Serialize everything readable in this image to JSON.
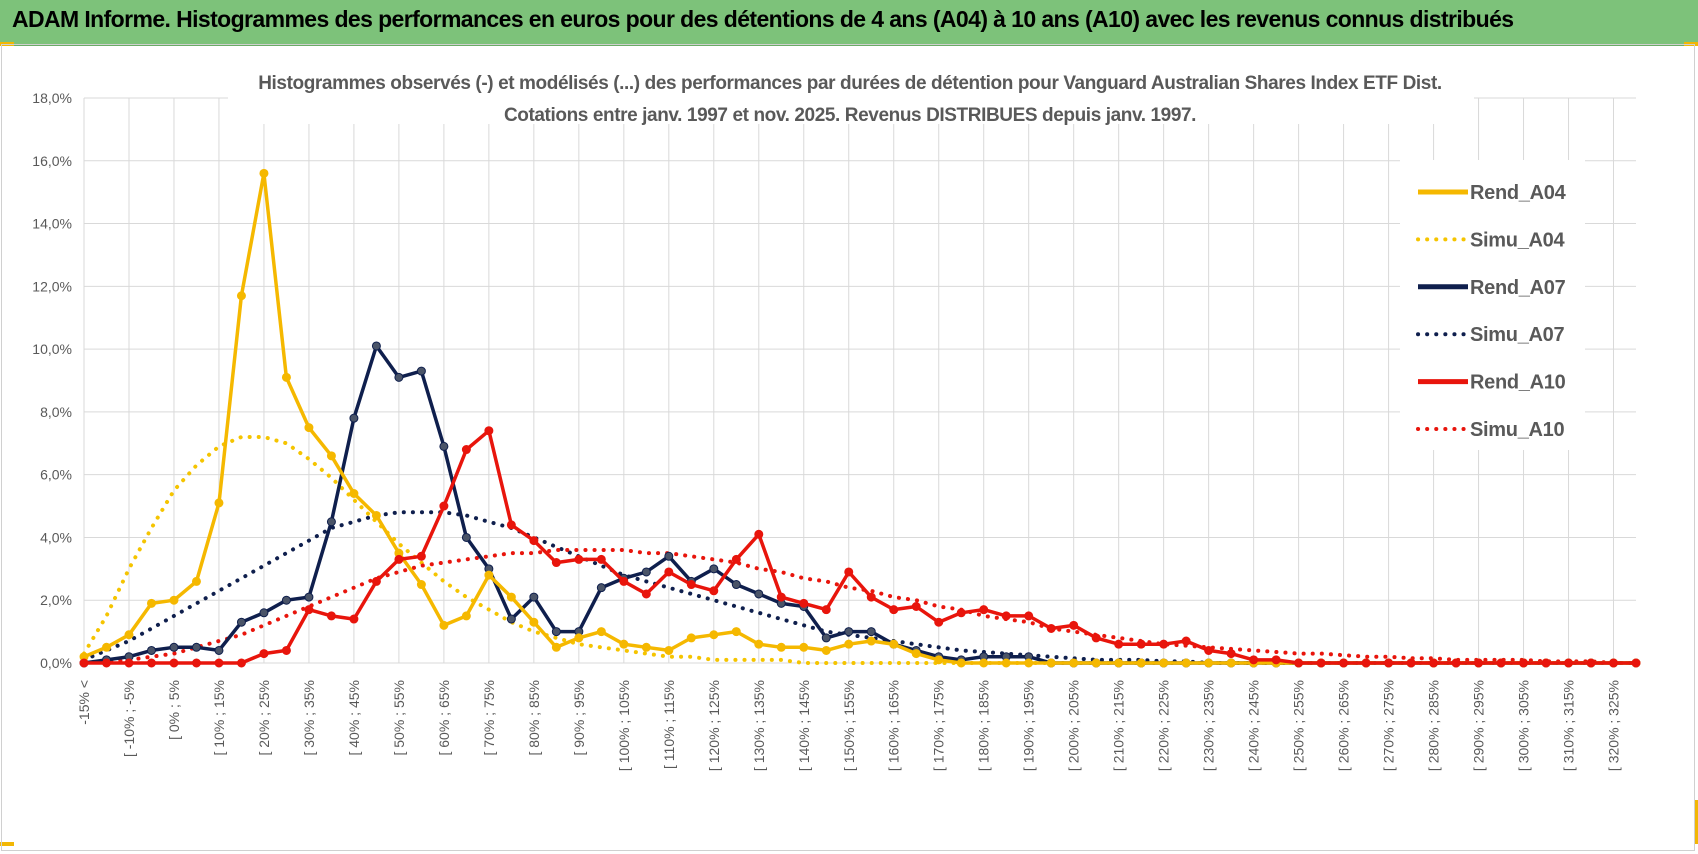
{
  "header": {
    "title": "ADAM Informe. Histogrammes des performances en euros pour des détentions de 4 ans (A04) à 10 ans (A10) avec les revenus connus distribués"
  },
  "chart_data": {
    "type": "line",
    "title": "Histogrammes observés (-) et modélisés (...) des performances par durées de détention pour Vanguard Australian Shares Index ETF Dist.",
    "subtitle": "Cotations entre janv. 1997 et nov. 2025. Revenus DISTRIBUES depuis janv. 1997.",
    "ylim": [
      0,
      18
    ],
    "y_ticks": [
      "0,0%",
      "2,0%",
      "4,0%",
      "6,0%",
      "8,0%",
      "10,0%",
      "12,0%",
      "14,0%",
      "16,0%",
      "18,0%"
    ],
    "x_labels": [
      "-15% <",
      "[ -10% ; -5%",
      "[ 0% ; 5%",
      "[ 10% ; 15%",
      "[ 20% ; 25%",
      "[ 30% ; 35%",
      "[ 40% ; 45%",
      "[ 50% ; 55%",
      "[ 60% ; 65%",
      "[ 70% ; 75%",
      "[ 80% ; 85%",
      "[ 90% ; 95%",
      "[ 100% ; 105%",
      "[ 110% ; 115%",
      "[ 120% ; 125%",
      "[ 130% ; 135%",
      "[ 140% ; 145%",
      "[ 150% ; 155%",
      "[ 160% ; 165%",
      "[ 170% ; 175%",
      "[ 180% ; 185%",
      "[ 190% ; 195%",
      "[ 200% ; 205%",
      "[ 210% ; 215%",
      "[ 220% ; 225%",
      "[ 230% ; 235%",
      "[ 240% ; 245%",
      "[ 250% ; 255%",
      "[ 260% ; 265%",
      "[ 270% ; 275%",
      "[ 280% ; 285%",
      "[ 290% ; 295%",
      "[ 300% ; 305%",
      "[ 310% ; 315%",
      "[ 320% ; 325%"
    ],
    "series": [
      {
        "name": "Rend_A04",
        "style": "solid",
        "markers": true,
        "color": "#f5b800",
        "values": [
          0.2,
          0.5,
          0.9,
          1.9,
          2.0,
          2.6,
          5.1,
          11.7,
          15.6,
          9.1,
          7.5,
          6.6,
          5.4,
          4.7,
          3.5,
          2.5,
          1.2,
          1.5,
          2.8,
          2.1,
          1.3,
          0.5,
          0.8,
          1.0,
          0.6,
          0.5,
          0.4,
          0.8,
          0.9,
          1.0,
          0.6,
          0.5,
          0.5,
          0.4,
          0.6,
          0.7,
          0.6,
          0.3,
          0.1,
          0.0,
          0.0,
          0.0,
          0.0,
          0.0,
          0.0,
          0.0,
          0.0,
          0.0,
          0.0,
          0.0,
          0.0,
          0.0,
          0.0,
          0.0,
          0.0,
          0.0,
          0.0,
          0.0,
          0.0,
          0.0,
          0.0,
          0.0,
          0.0,
          0.0,
          0.0,
          0.0,
          0.0,
          0.0,
          0.0,
          0.0
        ]
      },
      {
        "name": "Simu_A04",
        "style": "dotted",
        "markers": false,
        "color": "#f5c400",
        "values": [
          0.3,
          1.5,
          3.0,
          4.3,
          5.5,
          6.3,
          6.9,
          7.2,
          7.2,
          7.0,
          6.5,
          5.9,
          5.2,
          4.5,
          3.8,
          3.2,
          2.6,
          2.1,
          1.7,
          1.3,
          1.0,
          0.8,
          0.6,
          0.5,
          0.4,
          0.3,
          0.2,
          0.2,
          0.1,
          0.1,
          0.1,
          0.1,
          0.0,
          0.0,
          0.0,
          0.0,
          0.0,
          0.0,
          0.0,
          0.0,
          0.0,
          0.0,
          0.0,
          0.0,
          0.0,
          0.0,
          0.0,
          0.0,
          0.0,
          0.0,
          0.0,
          0.0,
          0.0,
          0.0,
          0.0,
          0.0,
          0.0,
          0.0,
          0.0,
          0.0,
          0.0,
          0.0,
          0.0,
          0.0,
          0.0,
          0.0,
          0.0,
          0.0,
          0.0,
          0.0
        ]
      },
      {
        "name": "Rend_A07",
        "style": "solid",
        "markers": true,
        "color": "#0f1f4d",
        "values": [
          0.0,
          0.1,
          0.2,
          0.4,
          0.5,
          0.5,
          0.4,
          1.3,
          1.6,
          2.0,
          2.1,
          4.5,
          7.8,
          10.1,
          9.1,
          9.3,
          6.9,
          4.0,
          3.0,
          1.4,
          2.1,
          1.0,
          1.0,
          2.4,
          2.7,
          2.9,
          3.4,
          2.6,
          3.0,
          2.5,
          2.2,
          1.9,
          1.8,
          0.8,
          1.0,
          1.0,
          0.6,
          0.4,
          0.2,
          0.1,
          0.2,
          0.2,
          0.2,
          0.0,
          0.0,
          0.0,
          0.0,
          0.0,
          0.0,
          0.0,
          0.0,
          0.0,
          0.0,
          0.0,
          0.0,
          0.0,
          0.0,
          0.0,
          0.0,
          0.0,
          0.0,
          0.0,
          0.0,
          0.0,
          0.0,
          0.0,
          0.0,
          0.0,
          0.0,
          0.0
        ]
      },
      {
        "name": "Simu_A07",
        "style": "dotted",
        "markers": false,
        "color": "#0f1f4d",
        "values": [
          0.1,
          0.4,
          0.7,
          1.1,
          1.5,
          1.9,
          2.3,
          2.7,
          3.1,
          3.5,
          3.9,
          4.3,
          4.5,
          4.7,
          4.8,
          4.8,
          4.8,
          4.7,
          4.5,
          4.3,
          4.0,
          3.7,
          3.4,
          3.1,
          2.8,
          2.6,
          2.4,
          2.2,
          2.0,
          1.8,
          1.6,
          1.4,
          1.2,
          1.0,
          0.9,
          0.8,
          0.7,
          0.6,
          0.5,
          0.4,
          0.35,
          0.3,
          0.25,
          0.2,
          0.15,
          0.1,
          0.1,
          0.1,
          0.05,
          0.05,
          0.0,
          0.0,
          0.0,
          0.0,
          0.0,
          0.0,
          0.0,
          0.0,
          0.0,
          0.0,
          0.0,
          0.0,
          0.0,
          0.0,
          0.0,
          0.0,
          0.0,
          0.0,
          0.0,
          0.0
        ]
      },
      {
        "name": "Rend_A10",
        "style": "solid",
        "markers": true,
        "color": "#e8150c",
        "values": [
          0.0,
          0.0,
          0.0,
          0.0,
          0.0,
          0.0,
          0.0,
          0.0,
          0.3,
          0.4,
          1.7,
          1.5,
          1.4,
          2.6,
          3.3,
          3.4,
          5.0,
          6.8,
          7.4,
          4.4,
          3.9,
          3.2,
          3.3,
          3.3,
          2.6,
          2.2,
          2.9,
          2.5,
          2.3,
          3.3,
          4.1,
          2.1,
          1.9,
          1.7,
          2.9,
          2.1,
          1.7,
          1.8,
          1.3,
          1.6,
          1.7,
          1.5,
          1.5,
          1.1,
          1.2,
          0.8,
          0.6,
          0.6,
          0.6,
          0.7,
          0.4,
          0.3,
          0.1,
          0.1,
          0.0,
          0.0,
          0.0,
          0.0,
          0.0,
          0.0,
          0.0,
          0.0,
          0.0,
          0.0,
          0.0,
          0.0,
          0.0,
          0.0,
          0.0,
          0.0
        ]
      },
      {
        "name": "Simu_A10",
        "style": "dotted",
        "markers": false,
        "color": "#e8150c",
        "values": [
          0.0,
          0.05,
          0.1,
          0.2,
          0.3,
          0.5,
          0.7,
          0.9,
          1.2,
          1.5,
          1.8,
          2.1,
          2.4,
          2.7,
          2.9,
          3.1,
          3.2,
          3.3,
          3.4,
          3.5,
          3.5,
          3.6,
          3.6,
          3.6,
          3.6,
          3.5,
          3.5,
          3.4,
          3.3,
          3.2,
          3.0,
          2.9,
          2.7,
          2.6,
          2.4,
          2.3,
          2.1,
          2.0,
          1.8,
          1.7,
          1.5,
          1.4,
          1.3,
          1.1,
          1.0,
          0.9,
          0.8,
          0.7,
          0.6,
          0.55,
          0.5,
          0.45,
          0.4,
          0.35,
          0.3,
          0.3,
          0.25,
          0.2,
          0.2,
          0.15,
          0.15,
          0.1,
          0.1,
          0.1,
          0.1,
          0.05,
          0.05,
          0.05,
          0.0,
          0.0
        ]
      }
    ],
    "legend_position": "right",
    "grid": true
  }
}
